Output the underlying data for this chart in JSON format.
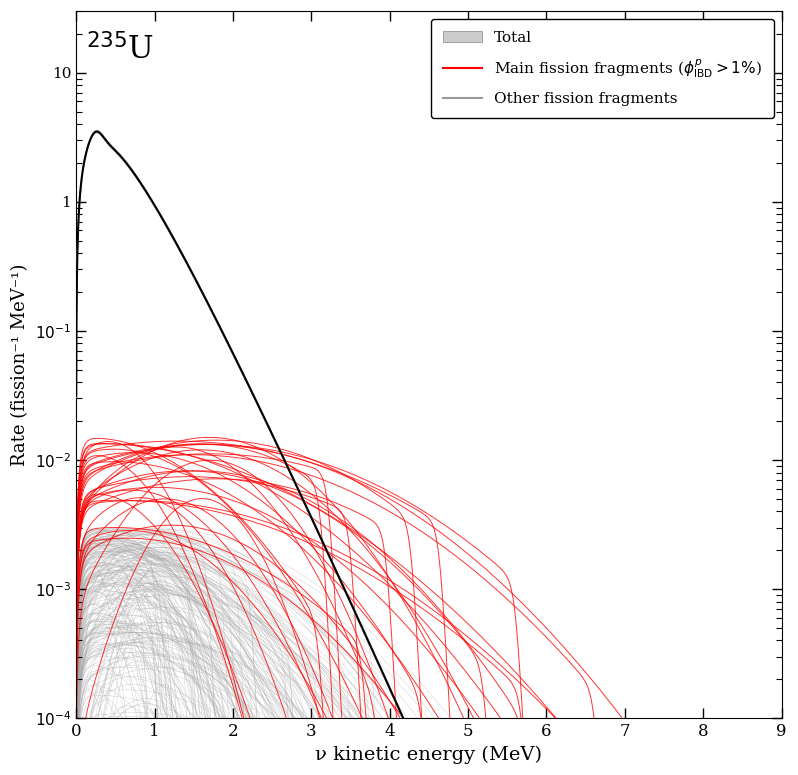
{
  "title": "235U",
  "xlabel": "ν kinetic energy (MeV)",
  "ylabel": "Rate (fission⁻¹ MeV⁻¹)",
  "xmin": 0.0,
  "xmax": 9.0,
  "ymin": 0.0001,
  "ymax": 30,
  "total_color": "#000000",
  "total_band_color": "#bbbbbb",
  "main_frag_color": "#ff0000",
  "other_frag_color": "#aaaaaa",
  "n_main_fragments": 35,
  "n_other_fragments": 250,
  "legend_label_total": "Total",
  "legend_label_main": "Main fission fragments ($\\phi^p_{\\mathrm{IBD}}>1\\%$)",
  "legend_label_other": "Other fission fragments",
  "seed": 42
}
